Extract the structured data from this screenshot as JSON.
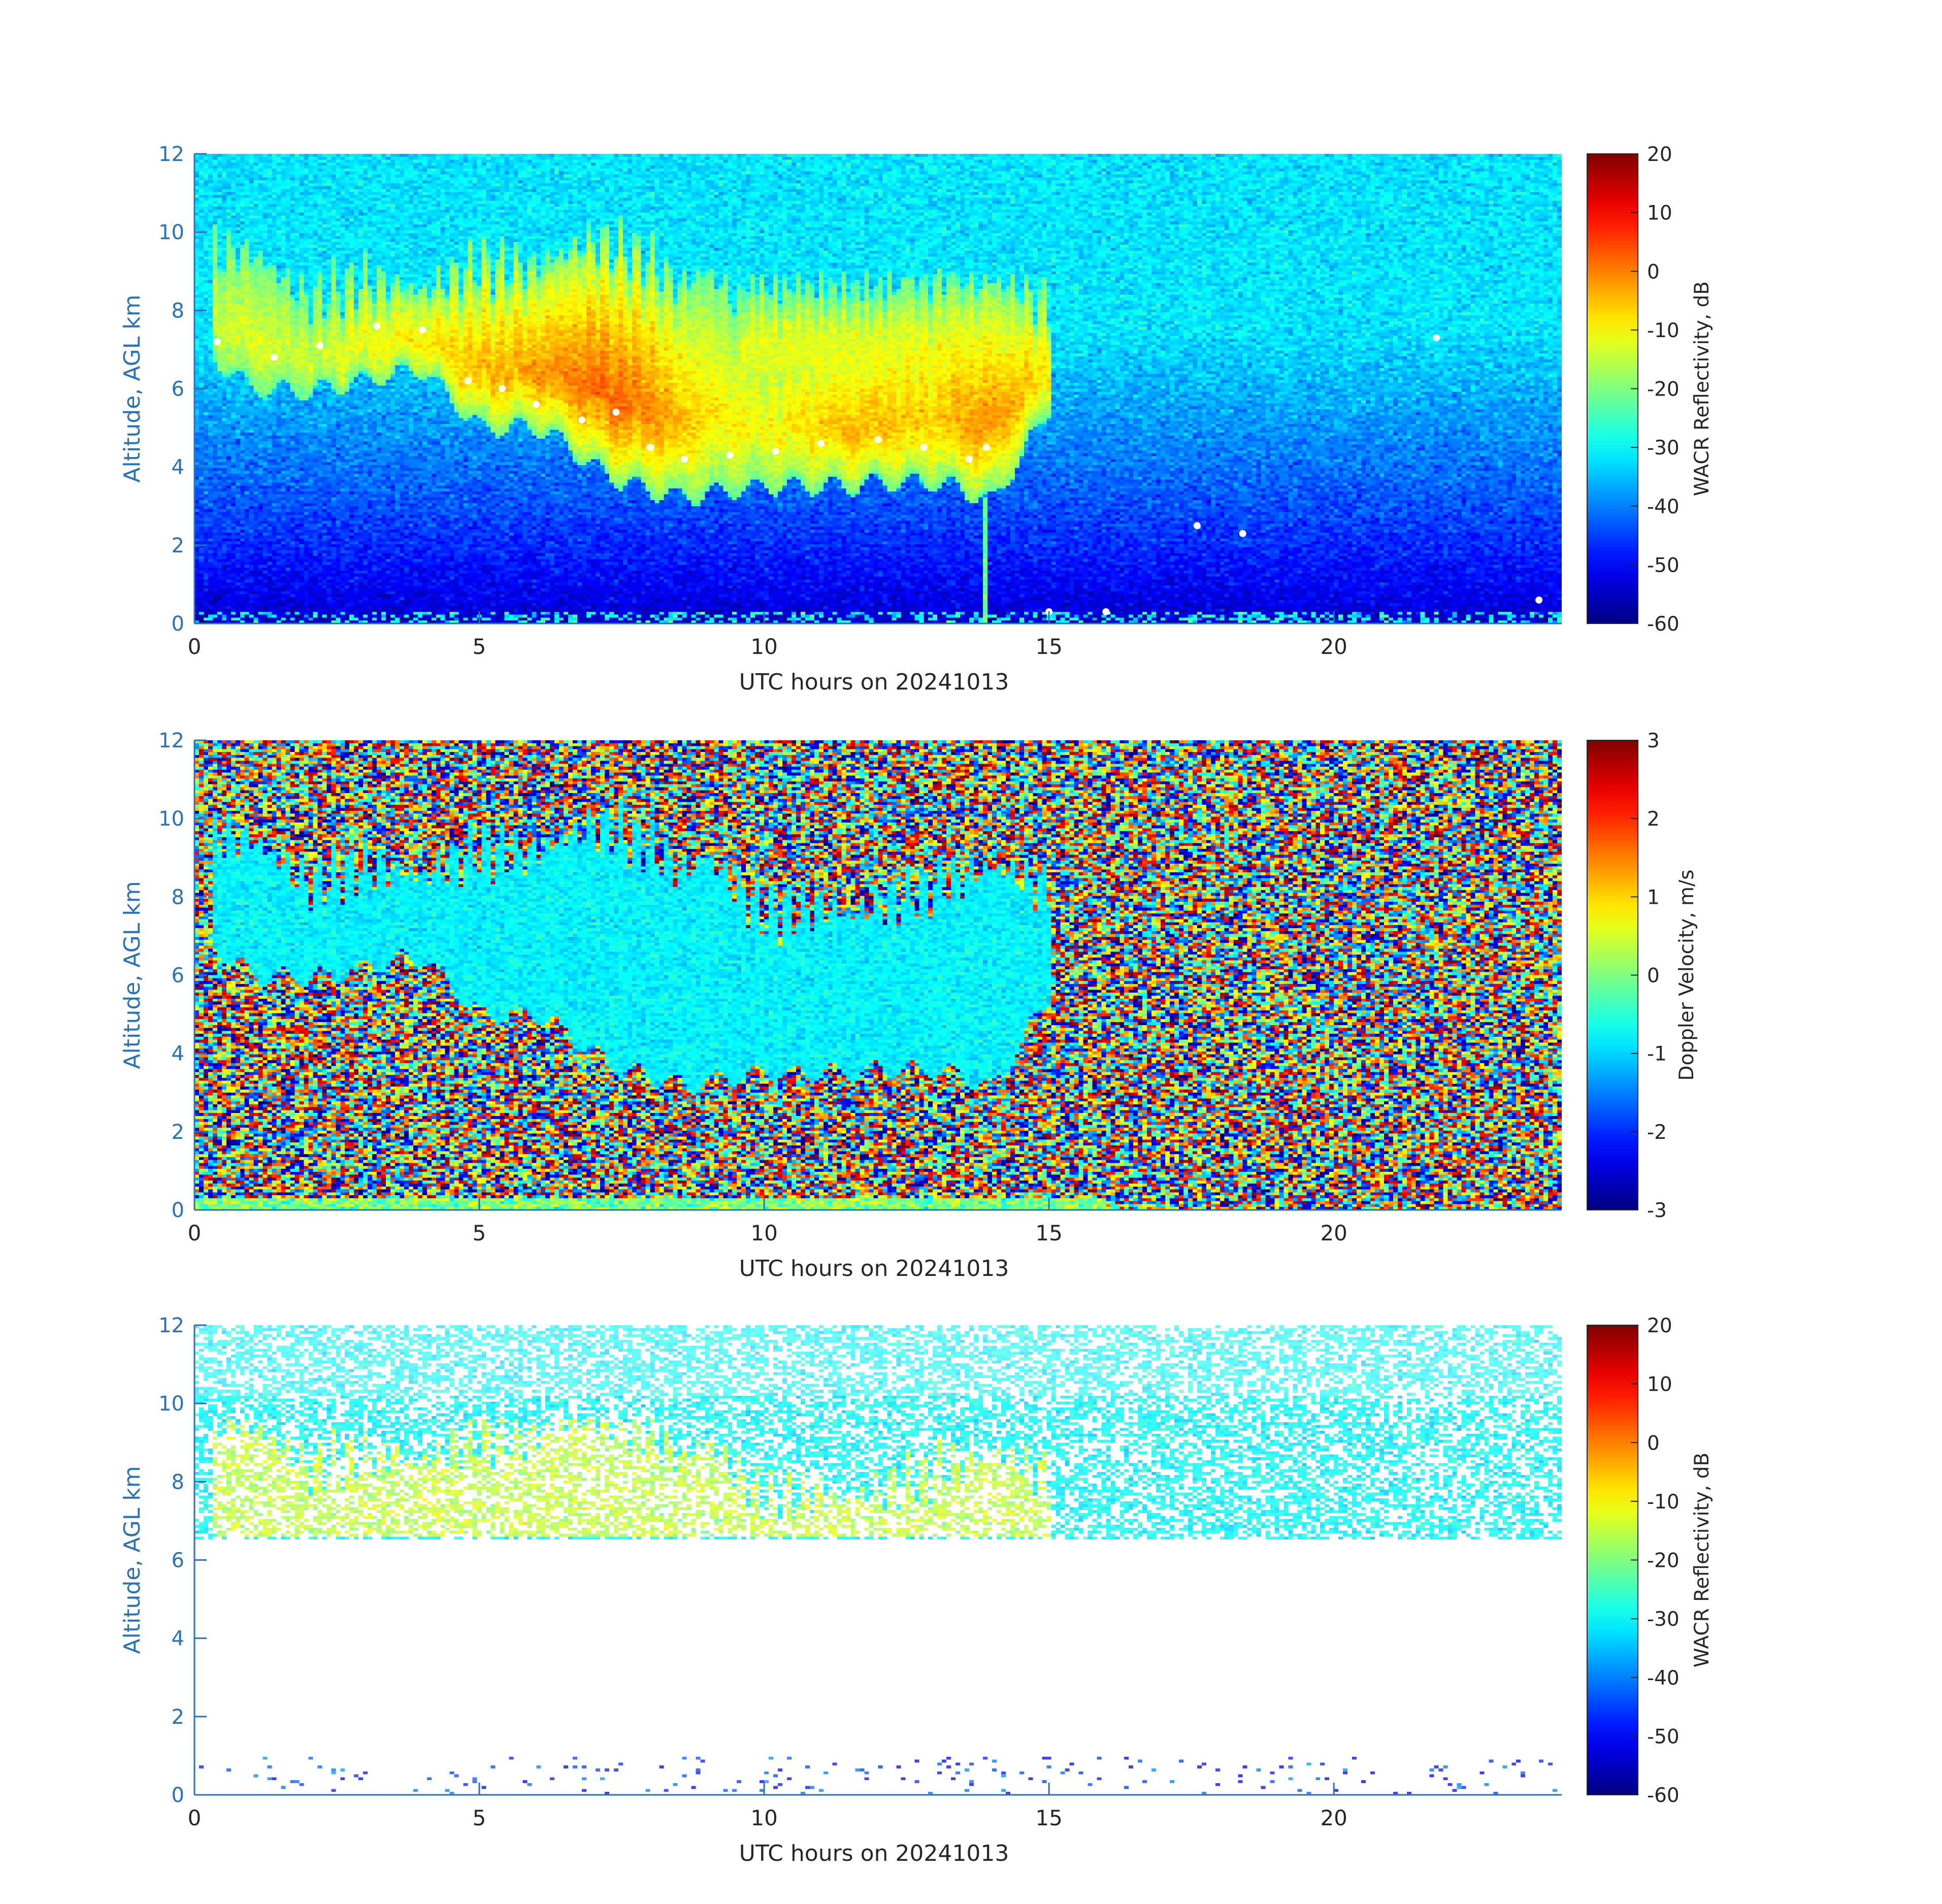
{
  "chart_data": [
    {
      "type": "heatmap",
      "panel": "top",
      "xlabel": "UTC hours on 20241013",
      "ylabel": "Altitude, AGL km",
      "xlim": [
        0,
        24
      ],
      "ylim": [
        0,
        12
      ],
      "xticks": [
        "0",
        "5",
        "10",
        "15",
        "20"
      ],
      "xtick_values": [
        0,
        5,
        10,
        15,
        20
      ],
      "yticks": [
        "0",
        "2",
        "4",
        "6",
        "8",
        "10",
        "12"
      ],
      "ytick_values": [
        0,
        2,
        4,
        6,
        8,
        10,
        12
      ],
      "colorbar": {
        "label": "WACR Reflectivity, dB",
        "range": [
          -60,
          20
        ],
        "ticks": [
          "20",
          "10",
          "0",
          "-10",
          "-20",
          "-30",
          "-40",
          "-50",
          "-60"
        ],
        "tick_values": [
          20,
          10,
          0,
          -10,
          -20,
          -30,
          -40,
          -50,
          -60
        ]
      },
      "background": {
        "near_surface_dB": -55,
        "aloft_dB": -32
      },
      "cloud": {
        "time": [
          0.3,
          1,
          2,
          3,
          4,
          5,
          6,
          6.5,
          7,
          7.5,
          8,
          8.5,
          9,
          10,
          11,
          11.5,
          12,
          13,
          13.5,
          14,
          14.5,
          15
        ],
        "base_km": [
          6.8,
          6,
          5.9,
          6.2,
          6.5,
          5,
          5,
          4.6,
          4,
          3.6,
          3.4,
          3.2,
          3.3,
          3.5,
          3.5,
          3.5,
          3.6,
          3.6,
          3.4,
          3.1,
          4.2,
          5.5
        ],
        "top_km": [
          9.5,
          9.5,
          8.3,
          8.8,
          8.5,
          9.2,
          9.1,
          9.5,
          9.8,
          9.6,
          9.3,
          8.6,
          9,
          7.5,
          7.8,
          7.5,
          7.8,
          8.3,
          8.5,
          8.8,
          8.5,
          8.2
        ],
        "peak_dB": [
          -14,
          -12,
          -14,
          -10,
          -8,
          -4,
          -2,
          0,
          2,
          2,
          0,
          -4,
          -8,
          -10,
          -6,
          -4,
          -4,
          -6,
          -2,
          -2,
          -4,
          -8
        ],
        "secondary_patch": {
          "time": [
            9.6,
            13.7
          ],
          "top_km": 8.6,
          "base_km": 5.5,
          "peak_dB": -12
        },
        "precip_streak": {
          "time": 13.9,
          "to_km": 0
        }
      },
      "white_markers_km": {
        "time": [
          0.4,
          1.4,
          2.2,
          3.2,
          4,
          4.8,
          5.4,
          6,
          6.8,
          7.4,
          8,
          8.6,
          9.4,
          10.2,
          11,
          12,
          12.8,
          13.6,
          13.9,
          15,
          16,
          17.6,
          18.4,
          21.8,
          23.6
        ],
        "altitude": [
          7.2,
          6.8,
          7.1,
          7.6,
          7.5,
          6.2,
          6,
          5.6,
          5.2,
          5.4,
          4.5,
          4.2,
          4.3,
          4.4,
          4.6,
          4.7,
          4.5,
          4.2,
          4.5,
          0.3,
          0.3,
          2.5,
          2.3,
          7.3,
          0.6
        ]
      }
    },
    {
      "type": "heatmap",
      "panel": "middle",
      "xlabel": "UTC hours on 20241013",
      "ylabel": "Altitude, AGL km",
      "xlim": [
        0,
        24
      ],
      "ylim": [
        0,
        12
      ],
      "xticks": [
        "0",
        "5",
        "10",
        "15",
        "20"
      ],
      "xtick_values": [
        0,
        5,
        10,
        15,
        20
      ],
      "yticks": [
        "0",
        "2",
        "4",
        "6",
        "8",
        "10",
        "12"
      ],
      "ytick_values": [
        0,
        2,
        4,
        6,
        8,
        10,
        12
      ],
      "colorbar": {
        "label": "Doppler Velocity, m/s",
        "range": [
          -3,
          3
        ],
        "ticks": [
          "3",
          "2",
          "1",
          "0",
          "-1",
          "-2",
          "-3"
        ],
        "tick_values": [
          3,
          2,
          1,
          0,
          -1,
          -2,
          -3
        ]
      },
      "background": "noise",
      "cloud_velocity_ms": -0.8,
      "surface_layer_velocity_ms": 0
    },
    {
      "type": "heatmap",
      "panel": "bottom",
      "xlabel": "UTC hours on 20241013",
      "ylabel": "Altitude, AGL km",
      "xlim": [
        0,
        24
      ],
      "ylim": [
        0,
        12
      ],
      "xticks": [
        "0",
        "5",
        "10",
        "15",
        "20"
      ],
      "xtick_values": [
        0,
        5,
        10,
        15,
        20
      ],
      "yticks": [
        "0",
        "2",
        "4",
        "6",
        "8",
        "10",
        "12"
      ],
      "ytick_values": [
        0,
        2,
        4,
        6,
        8,
        10,
        12
      ],
      "colorbar": {
        "label": "WACR Reflectivity, dB",
        "range": [
          -60,
          20
        ],
        "ticks": [
          "20",
          "10",
          "0",
          "-10",
          "-20",
          "-30",
          "-40",
          "-50",
          "-60"
        ],
        "tick_values": [
          20,
          10,
          0,
          -10,
          -20,
          -30,
          -40,
          -50,
          -60
        ]
      },
      "background": "sparse points above 6.5 km, near blank below",
      "band_km": [
        6.7,
        8.0
      ]
    }
  ],
  "colors": {
    "axis_blue": "#2a72b8",
    "text": "#262626"
  }
}
